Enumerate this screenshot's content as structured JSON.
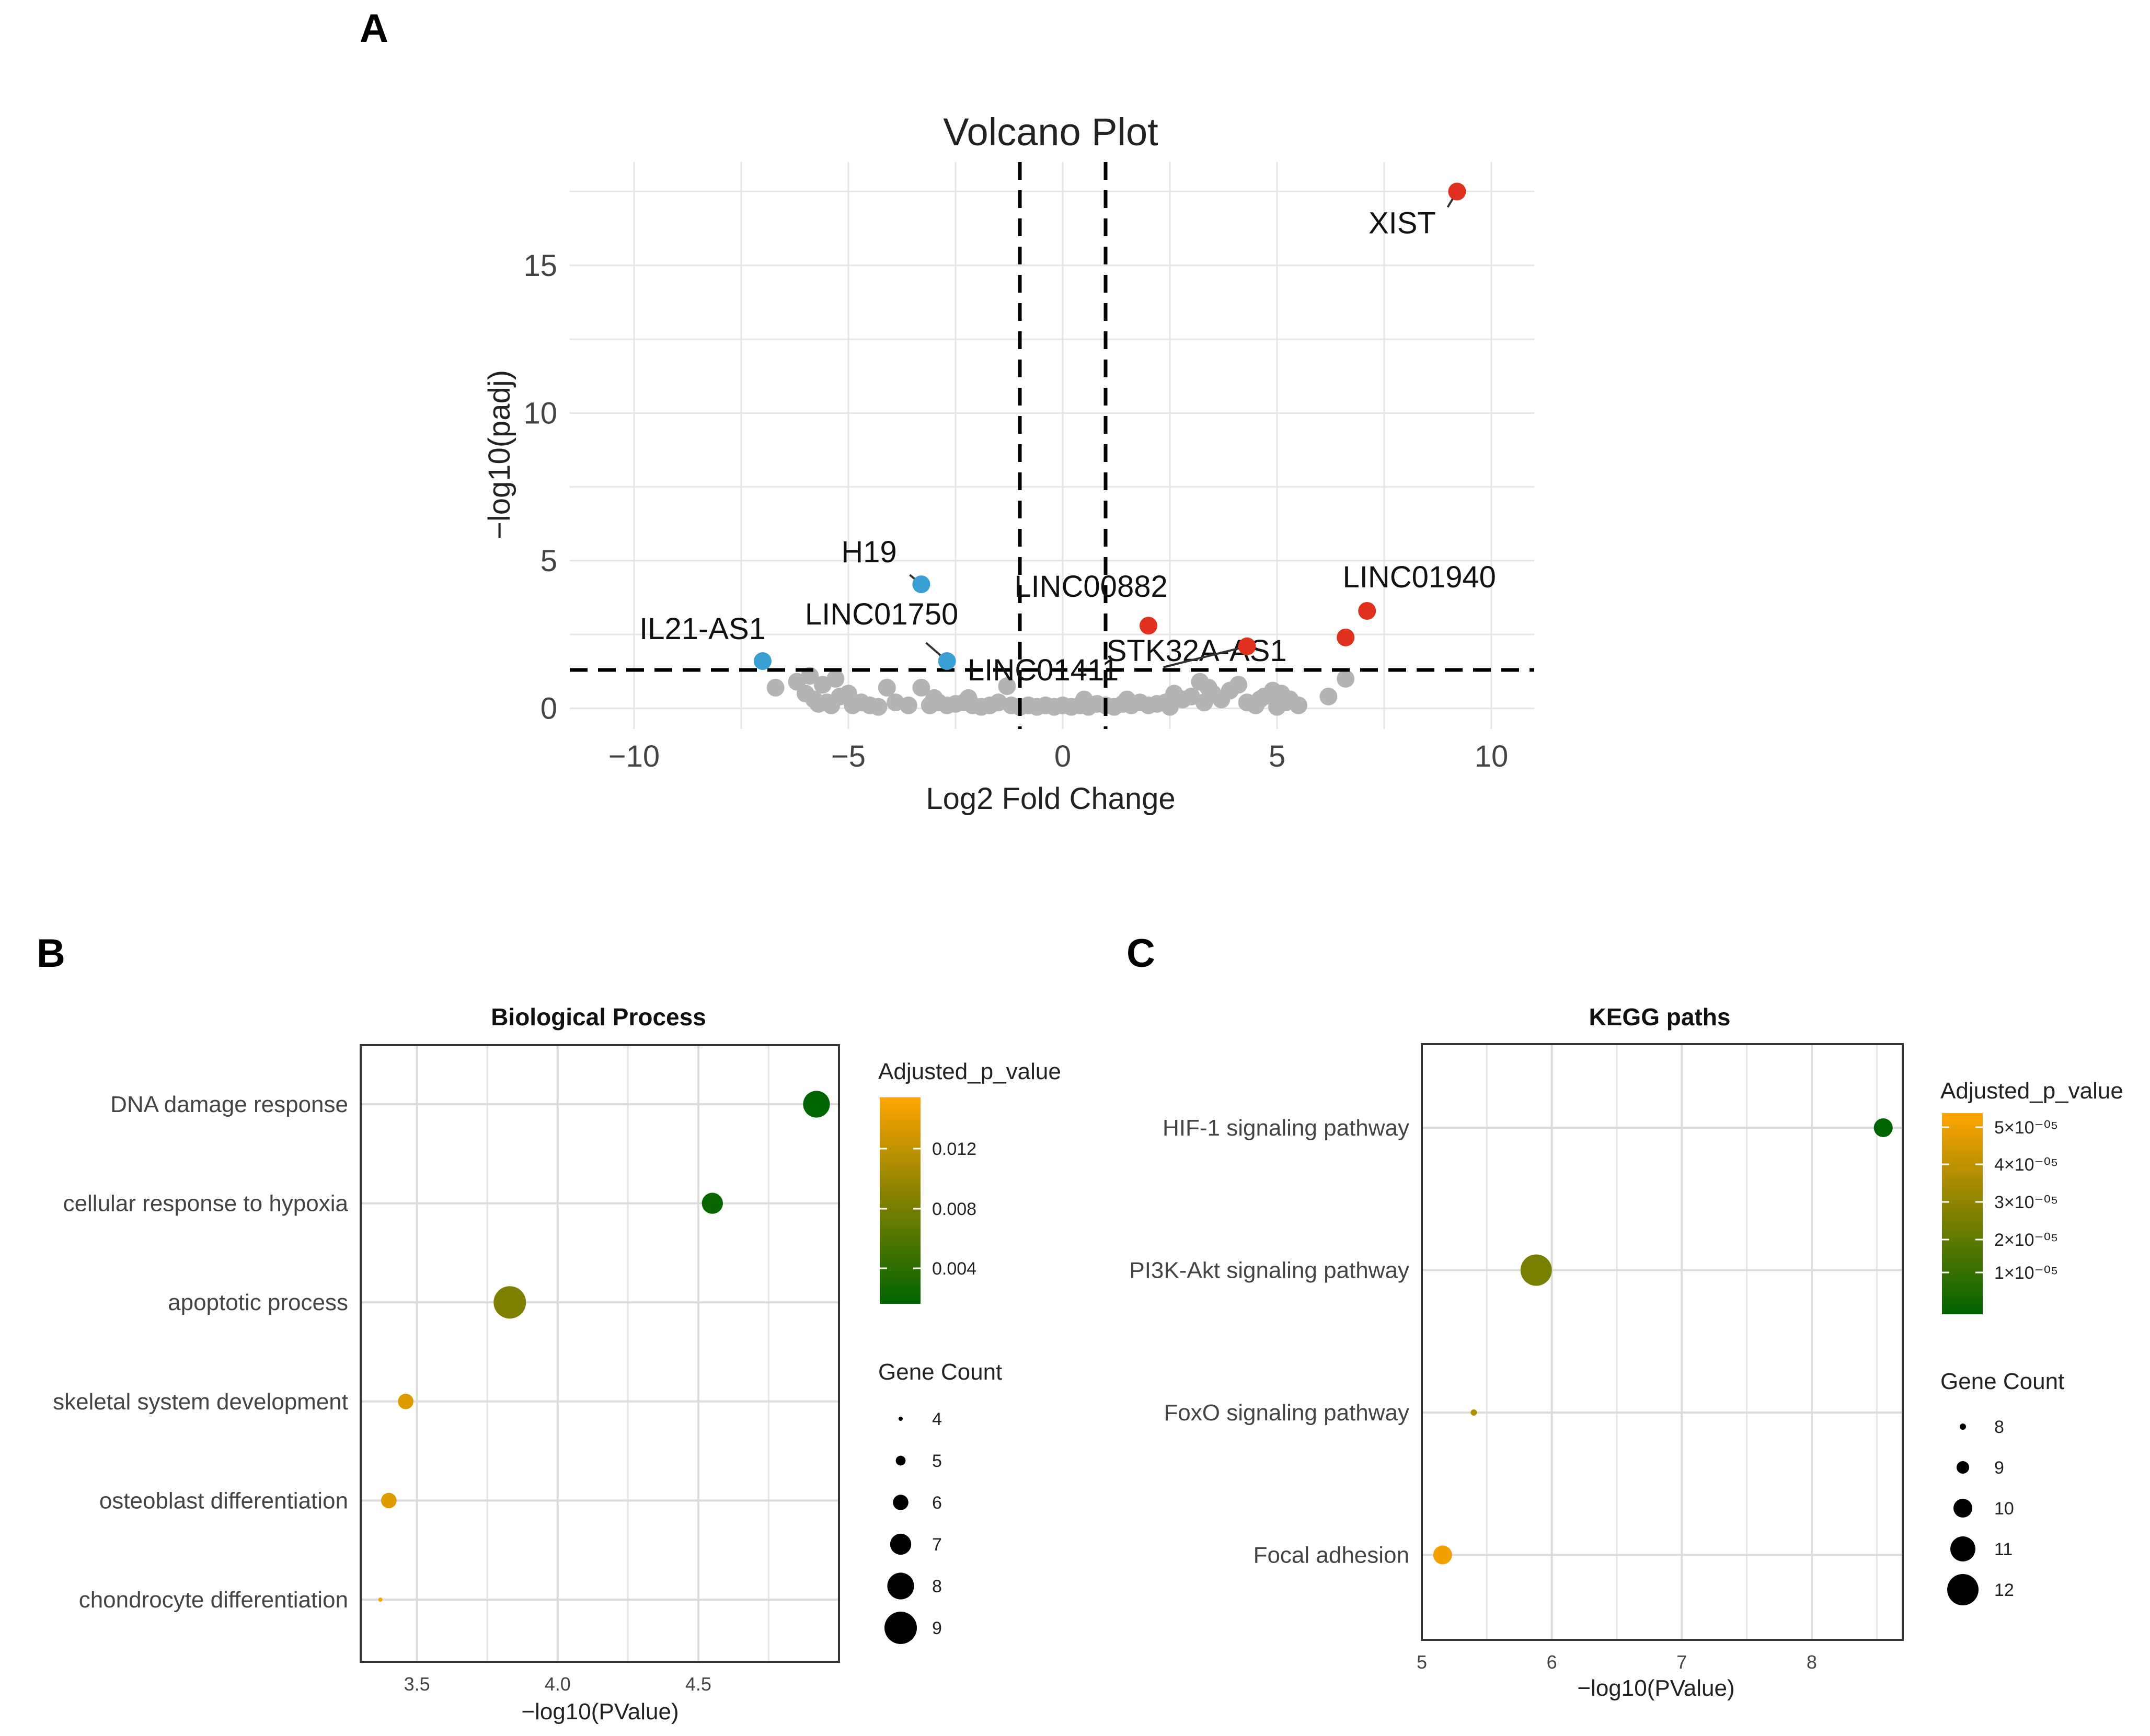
{
  "panels": {
    "a": "A",
    "b": "B",
    "c": "C"
  },
  "colors": {
    "up": "#e0301e",
    "down": "#3aa0d3",
    "ns": "#b4b4b4",
    "high": "#ffa500",
    "mid": "#808000",
    "low": "#006400"
  },
  "chart_data": [
    {
      "type": "scatter",
      "title": "Volcano Plot",
      "xlabel": "Log2 Fold Change",
      "ylabel": "−log10(padj)",
      "xlim": [
        -11.5,
        11
      ],
      "ylim": [
        -0.7,
        18.5
      ],
      "xticks": [
        -10,
        -5,
        0,
        5,
        10
      ],
      "xtick_labels": [
        "−10",
        "−5",
        "0",
        "5",
        "10"
      ],
      "yticks": [
        0,
        5,
        10,
        15
      ],
      "ytick_labels": [
        "0",
        "5",
        "10",
        "15"
      ],
      "thresholds": {
        "log2fc": [
          -1,
          1
        ],
        "neg_log10_padj": 1.3
      },
      "labeled_points": [
        {
          "gene": "XIST",
          "x": 9.2,
          "y": 17.5,
          "group": "up"
        },
        {
          "gene": "LINC01940",
          "x": 7.1,
          "y": 3.3,
          "group": "up"
        },
        {
          "gene": "LINC00882",
          "x": 2.0,
          "y": 2.8,
          "group": "up"
        },
        {
          "gene": "STK32A-AS1",
          "x": 6.6,
          "y": 2.4,
          "group": "up"
        },
        {
          "gene": "LINC01411",
          "x": 4.3,
          "y": 2.1,
          "group": "up"
        },
        {
          "gene": "H19",
          "x": -3.3,
          "y": 4.2,
          "group": "down"
        },
        {
          "gene": "LINC01750",
          "x": -2.7,
          "y": 1.6,
          "group": "down"
        },
        {
          "gene": "IL21-AS1",
          "x": -7.0,
          "y": 1.6,
          "group": "down"
        }
      ],
      "background_points": [
        [
          -6.7,
          0.7
        ],
        [
          -6.2,
          0.9
        ],
        [
          -5.9,
          1.1
        ],
        [
          -5.6,
          0.8
        ],
        [
          -5.3,
          1.0
        ],
        [
          -5.0,
          0.5
        ],
        [
          -5.8,
          0.3
        ],
        [
          -6.0,
          0.5
        ],
        [
          -5.5,
          0.2
        ],
        [
          -5.2,
          0.4
        ],
        [
          -4.9,
          0.1
        ],
        [
          -4.7,
          0.2
        ],
        [
          -4.5,
          0.1
        ],
        [
          -5.4,
          0.1
        ],
        [
          -5.7,
          0.15
        ],
        [
          -4.3,
          0.05
        ],
        [
          -4.1,
          0.7
        ],
        [
          -3.3,
          0.7
        ],
        [
          -3.1,
          0.1
        ],
        [
          -2.9,
          0.2
        ],
        [
          -2.7,
          0.1
        ],
        [
          -2.5,
          0.15
        ],
        [
          -2.3,
          0.2
        ],
        [
          -2.1,
          0.1
        ],
        [
          -1.9,
          0.05
        ],
        [
          -1.7,
          0.1
        ],
        [
          -1.5,
          0.2
        ],
        [
          -1.3,
          0.75
        ],
        [
          -1.2,
          0.1
        ],
        [
          -1.0,
          0.05
        ],
        [
          -0.8,
          0.1
        ],
        [
          -0.6,
          0.05
        ],
        [
          -0.4,
          0.1
        ],
        [
          -0.2,
          0.05
        ],
        [
          0.0,
          0.1
        ],
        [
          0.2,
          0.05
        ],
        [
          0.4,
          0.1
        ],
        [
          0.6,
          0.05
        ],
        [
          0.8,
          0.15
        ],
        [
          1.0,
          0.1
        ],
        [
          1.2,
          0.05
        ],
        [
          1.4,
          0.15
        ],
        [
          1.6,
          0.1
        ],
        [
          1.8,
          0.2
        ],
        [
          2.0,
          0.1
        ],
        [
          2.2,
          0.15
        ],
        [
          2.4,
          0.2
        ],
        [
          2.6,
          0.5
        ],
        [
          2.8,
          0.3
        ],
        [
          3.0,
          0.4
        ],
        [
          3.2,
          0.9
        ],
        [
          3.4,
          0.7
        ],
        [
          3.5,
          0.5
        ],
        [
          3.7,
          0.3
        ],
        [
          3.9,
          0.6
        ],
        [
          4.1,
          0.8
        ],
        [
          4.3,
          0.2
        ],
        [
          4.5,
          0.1
        ],
        [
          4.7,
          0.4
        ],
        [
          4.9,
          0.6
        ],
        [
          5.1,
          0.5
        ],
        [
          5.3,
          0.3
        ],
        [
          5.5,
          0.1
        ],
        [
          6.2,
          0.4
        ],
        [
          6.6,
          1.0
        ],
        [
          -3.9,
          0.2
        ],
        [
          -3.6,
          0.1
        ],
        [
          -3.0,
          0.35
        ],
        [
          -2.2,
          0.35
        ],
        [
          0.5,
          0.3
        ],
        [
          1.5,
          0.3
        ],
        [
          2.5,
          0.05
        ],
        [
          3.3,
          0.2
        ],
        [
          4.6,
          0.3
        ],
        [
          5.0,
          0.05
        ],
        [
          5.2,
          0.2
        ]
      ]
    },
    {
      "type": "scatter",
      "title": "Biological Process",
      "xlabel": "−log10(PValue)",
      "xlim": [
        3.3,
        5.0
      ],
      "xticks": [
        3.5,
        4.0,
        4.5
      ],
      "xtick_labels": [
        "3.5",
        "4.0",
        "4.5"
      ],
      "categories": [
        "DNA damage response",
        "cellular response to hypoxia",
        "apoptotic process",
        "skeletal system development",
        "osteoblast differentiation",
        "chondrocyte differentiation"
      ],
      "x": [
        4.92,
        4.55,
        3.83,
        3.46,
        3.4,
        3.37
      ],
      "gene_count": [
        8,
        7,
        9,
        6,
        6,
        4
      ],
      "adjusted_p_value": [
        0.0015,
        0.002,
        0.009,
        0.0145,
        0.0145,
        0.016
      ],
      "color_legend": {
        "title": "Adjusted_p_value",
        "ticks": [
          "0.012",
          "0.008",
          "0.004"
        ]
      },
      "size_legend": {
        "title": "Gene Count",
        "values": [
          "4",
          "5",
          "6",
          "7",
          "8",
          "9"
        ]
      }
    },
    {
      "type": "scatter",
      "title": "KEGG paths",
      "xlabel": "−log10(PValue)",
      "xlim": [
        5.0,
        8.7
      ],
      "xticks": [
        5,
        6,
        7,
        8
      ],
      "xtick_labels": [
        "5",
        "6",
        "7",
        "8"
      ],
      "categories": [
        "HIF-1 signaling pathway",
        "PI3K-Akt signaling pathway",
        "FoxO signaling pathway",
        "Focal adhesion"
      ],
      "x": [
        8.55,
        5.88,
        5.4,
        5.16
      ],
      "gene_count": [
        10,
        12,
        8,
        10
      ],
      "adjusted_p_value": [
        1e-06,
        2.8e-05,
        4e-05,
        5.5e-05
      ],
      "color_legend": {
        "title": "Adjusted_p_value",
        "ticks": [
          "5×10⁻⁰⁵",
          "4×10⁻⁰⁵",
          "3×10⁻⁰⁵",
          "2×10⁻⁰⁵",
          "1×10⁻⁰⁵"
        ]
      },
      "size_legend": {
        "title": "Gene Count",
        "values": [
          "8",
          "9",
          "10",
          "11",
          "12"
        ]
      }
    }
  ]
}
